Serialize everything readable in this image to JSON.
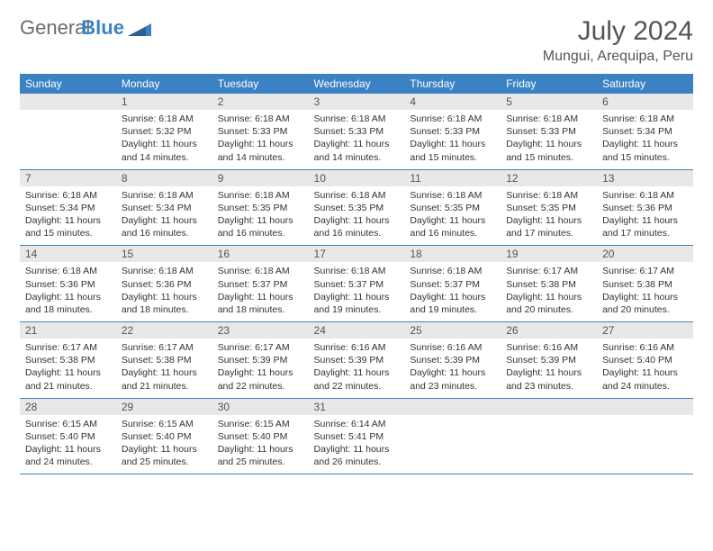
{
  "logo": {
    "text_gray": "General",
    "text_blue": "Blue"
  },
  "header": {
    "month_title": "July 2024",
    "location": "Mungui, Arequipa, Peru"
  },
  "colors": {
    "header_bg": "#3b82c4",
    "daynum_bg": "#e8e8e8",
    "text": "#333333"
  },
  "weekdays": [
    "Sunday",
    "Monday",
    "Tuesday",
    "Wednesday",
    "Thursday",
    "Friday",
    "Saturday"
  ],
  "weeks": [
    [
      {
        "n": "",
        "sr": "",
        "ss": "",
        "dl": ""
      },
      {
        "n": "1",
        "sr": "Sunrise: 6:18 AM",
        "ss": "Sunset: 5:32 PM",
        "dl": "Daylight: 11 hours and 14 minutes."
      },
      {
        "n": "2",
        "sr": "Sunrise: 6:18 AM",
        "ss": "Sunset: 5:33 PM",
        "dl": "Daylight: 11 hours and 14 minutes."
      },
      {
        "n": "3",
        "sr": "Sunrise: 6:18 AM",
        "ss": "Sunset: 5:33 PM",
        "dl": "Daylight: 11 hours and 14 minutes."
      },
      {
        "n": "4",
        "sr": "Sunrise: 6:18 AM",
        "ss": "Sunset: 5:33 PM",
        "dl": "Daylight: 11 hours and 15 minutes."
      },
      {
        "n": "5",
        "sr": "Sunrise: 6:18 AM",
        "ss": "Sunset: 5:33 PM",
        "dl": "Daylight: 11 hours and 15 minutes."
      },
      {
        "n": "6",
        "sr": "Sunrise: 6:18 AM",
        "ss": "Sunset: 5:34 PM",
        "dl": "Daylight: 11 hours and 15 minutes."
      }
    ],
    [
      {
        "n": "7",
        "sr": "Sunrise: 6:18 AM",
        "ss": "Sunset: 5:34 PM",
        "dl": "Daylight: 11 hours and 15 minutes."
      },
      {
        "n": "8",
        "sr": "Sunrise: 6:18 AM",
        "ss": "Sunset: 5:34 PM",
        "dl": "Daylight: 11 hours and 16 minutes."
      },
      {
        "n": "9",
        "sr": "Sunrise: 6:18 AM",
        "ss": "Sunset: 5:35 PM",
        "dl": "Daylight: 11 hours and 16 minutes."
      },
      {
        "n": "10",
        "sr": "Sunrise: 6:18 AM",
        "ss": "Sunset: 5:35 PM",
        "dl": "Daylight: 11 hours and 16 minutes."
      },
      {
        "n": "11",
        "sr": "Sunrise: 6:18 AM",
        "ss": "Sunset: 5:35 PM",
        "dl": "Daylight: 11 hours and 16 minutes."
      },
      {
        "n": "12",
        "sr": "Sunrise: 6:18 AM",
        "ss": "Sunset: 5:35 PM",
        "dl": "Daylight: 11 hours and 17 minutes."
      },
      {
        "n": "13",
        "sr": "Sunrise: 6:18 AM",
        "ss": "Sunset: 5:36 PM",
        "dl": "Daylight: 11 hours and 17 minutes."
      }
    ],
    [
      {
        "n": "14",
        "sr": "Sunrise: 6:18 AM",
        "ss": "Sunset: 5:36 PM",
        "dl": "Daylight: 11 hours and 18 minutes."
      },
      {
        "n": "15",
        "sr": "Sunrise: 6:18 AM",
        "ss": "Sunset: 5:36 PM",
        "dl": "Daylight: 11 hours and 18 minutes."
      },
      {
        "n": "16",
        "sr": "Sunrise: 6:18 AM",
        "ss": "Sunset: 5:37 PM",
        "dl": "Daylight: 11 hours and 18 minutes."
      },
      {
        "n": "17",
        "sr": "Sunrise: 6:18 AM",
        "ss": "Sunset: 5:37 PM",
        "dl": "Daylight: 11 hours and 19 minutes."
      },
      {
        "n": "18",
        "sr": "Sunrise: 6:18 AM",
        "ss": "Sunset: 5:37 PM",
        "dl": "Daylight: 11 hours and 19 minutes."
      },
      {
        "n": "19",
        "sr": "Sunrise: 6:17 AM",
        "ss": "Sunset: 5:38 PM",
        "dl": "Daylight: 11 hours and 20 minutes."
      },
      {
        "n": "20",
        "sr": "Sunrise: 6:17 AM",
        "ss": "Sunset: 5:38 PM",
        "dl": "Daylight: 11 hours and 20 minutes."
      }
    ],
    [
      {
        "n": "21",
        "sr": "Sunrise: 6:17 AM",
        "ss": "Sunset: 5:38 PM",
        "dl": "Daylight: 11 hours and 21 minutes."
      },
      {
        "n": "22",
        "sr": "Sunrise: 6:17 AM",
        "ss": "Sunset: 5:38 PM",
        "dl": "Daylight: 11 hours and 21 minutes."
      },
      {
        "n": "23",
        "sr": "Sunrise: 6:17 AM",
        "ss": "Sunset: 5:39 PM",
        "dl": "Daylight: 11 hours and 22 minutes."
      },
      {
        "n": "24",
        "sr": "Sunrise: 6:16 AM",
        "ss": "Sunset: 5:39 PM",
        "dl": "Daylight: 11 hours and 22 minutes."
      },
      {
        "n": "25",
        "sr": "Sunrise: 6:16 AM",
        "ss": "Sunset: 5:39 PM",
        "dl": "Daylight: 11 hours and 23 minutes."
      },
      {
        "n": "26",
        "sr": "Sunrise: 6:16 AM",
        "ss": "Sunset: 5:39 PM",
        "dl": "Daylight: 11 hours and 23 minutes."
      },
      {
        "n": "27",
        "sr": "Sunrise: 6:16 AM",
        "ss": "Sunset: 5:40 PM",
        "dl": "Daylight: 11 hours and 24 minutes."
      }
    ],
    [
      {
        "n": "28",
        "sr": "Sunrise: 6:15 AM",
        "ss": "Sunset: 5:40 PM",
        "dl": "Daylight: 11 hours and 24 minutes."
      },
      {
        "n": "29",
        "sr": "Sunrise: 6:15 AM",
        "ss": "Sunset: 5:40 PM",
        "dl": "Daylight: 11 hours and 25 minutes."
      },
      {
        "n": "30",
        "sr": "Sunrise: 6:15 AM",
        "ss": "Sunset: 5:40 PM",
        "dl": "Daylight: 11 hours and 25 minutes."
      },
      {
        "n": "31",
        "sr": "Sunrise: 6:14 AM",
        "ss": "Sunset: 5:41 PM",
        "dl": "Daylight: 11 hours and 26 minutes."
      },
      {
        "n": "",
        "sr": "",
        "ss": "",
        "dl": ""
      },
      {
        "n": "",
        "sr": "",
        "ss": "",
        "dl": ""
      },
      {
        "n": "",
        "sr": "",
        "ss": "",
        "dl": ""
      }
    ]
  ]
}
